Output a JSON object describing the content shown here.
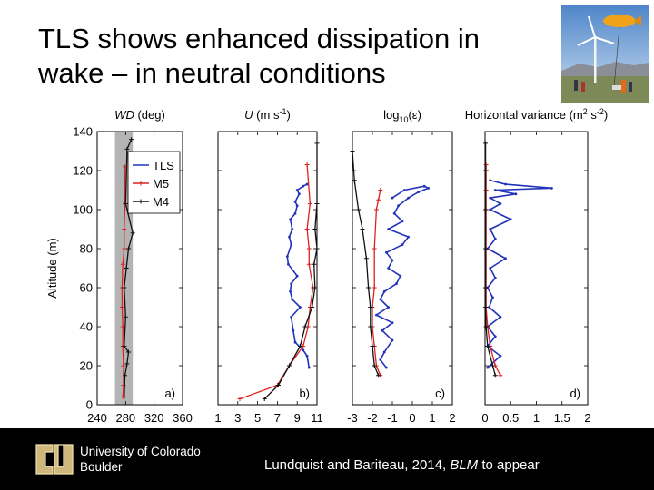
{
  "slide": {
    "title_line1": "TLS shows enhanced dissipation in",
    "title_line2": "wake – in neutral conditions",
    "citation_prefix": "Lundquist and Bariteau, 2014, ",
    "citation_journal": "BLM",
    "citation_suffix": " to appear"
  },
  "branding": {
    "university_line1": "University of Colorado",
    "university_line2": "Boulder",
    "logo_icon": "cu-logo-icon",
    "photo_icon": "wind-turbine-tethered-balloon-photo"
  },
  "colors": {
    "TLS": "#2233bb",
    "M5": "#dd2222",
    "M4": "#111111",
    "shade": "#b4b4b4",
    "footer": "#000000"
  },
  "chart_data": [
    {
      "type": "line",
      "panel": "a)",
      "title_var": "WD",
      "title_rest": " (deg)",
      "ylabel": "Altitude (m)",
      "ylim": [
        0,
        140
      ],
      "yticks": [
        0,
        20,
        40,
        60,
        80,
        100,
        120,
        140
      ],
      "xlim": [
        240,
        360
      ],
      "xticks": [
        "240",
        "280",
        "320",
        "360"
      ],
      "xtick_values": [
        240,
        280,
        320,
        360
      ],
      "shaded_band": [
        265,
        290
      ],
      "legend": [
        "TLS",
        "M5",
        "M4"
      ],
      "series": [
        {
          "name": "M5",
          "x": [
            276,
            277,
            277,
            276,
            276,
            275,
            275,
            276,
            278,
            278,
            279,
            279
          ],
          "y": [
            4,
            10,
            20,
            30,
            40,
            50,
            60,
            72,
            80,
            90,
            103,
            122
          ]
        },
        {
          "name": "M4",
          "x": [
            278,
            279,
            282,
            284,
            278,
            280,
            278,
            281,
            284,
            290,
            280,
            282,
            288
          ],
          "y": [
            4,
            15,
            21,
            27,
            30,
            45,
            60,
            70,
            80,
            88,
            103,
            131,
            136
          ]
        }
      ]
    },
    {
      "type": "line",
      "panel": "b)",
      "title_var": "U",
      "title_rest": " (m s",
      "title_sup": "-1",
      "title_end": ")",
      "ylim": [
        0,
        140
      ],
      "xlim": [
        1,
        11
      ],
      "xticks": [
        "1",
        "3",
        "5",
        "7",
        "9",
        "11"
      ],
      "xtick_values": [
        1,
        3,
        5,
        7,
        9,
        11
      ],
      "series": [
        {
          "name": "TLS",
          "x": [
            10.2,
            10.0,
            9.6,
            8.8,
            8.6,
            8.4,
            9.3,
            8.5,
            8.3,
            8.4,
            9.0,
            8.1,
            8.0,
            8.4,
            8.2,
            8.5,
            8.3,
            8.8,
            9.0,
            8.8,
            9.2,
            9.0,
            9.6,
            10.0
          ],
          "y": [
            19,
            25,
            28,
            32,
            38,
            45,
            50,
            54,
            58,
            62,
            66,
            72,
            76,
            82,
            86,
            90,
            95,
            98,
            102,
            104,
            108,
            110,
            112,
            113
          ]
        },
        {
          "name": "M5",
          "x": [
            3.2,
            7.0,
            8.2,
            9.6,
            10.1,
            10.3,
            10.6,
            10.2,
            10.2,
            10.0,
            10.3,
            10.0
          ],
          "y": [
            3,
            10,
            20,
            30,
            40,
            50,
            60,
            72,
            80,
            90,
            103,
            123
          ]
        },
        {
          "name": "M4",
          "x": [
            5.7,
            7.1,
            8.2,
            9.3,
            9.8,
            10.5,
            10.8,
            10.7,
            11.0,
            10.8,
            11.0,
            11.0
          ],
          "y": [
            3,
            10,
            20,
            30,
            40,
            50,
            60,
            72,
            80,
            90,
            103,
            134
          ]
        }
      ]
    },
    {
      "type": "line",
      "panel": "c)",
      "title_var": "log",
      "title_sub": "10",
      "title_end": "(ε)",
      "ylim": [
        0,
        140
      ],
      "xlim": [
        -3,
        2
      ],
      "xticks": [
        "-3",
        "-2",
        "-1",
        "0",
        "1",
        "2"
      ],
      "xtick_values": [
        -3,
        -2,
        -1,
        0,
        1,
        2
      ],
      "series": [
        {
          "name": "TLS",
          "x": [
            -1.3,
            -1.6,
            -1.4,
            -1.0,
            -1.5,
            -1.0,
            -1.8,
            -1.2,
            -1.6,
            -1.4,
            -0.8,
            -0.6,
            -1.2,
            -1.0,
            -1.3,
            -0.5,
            -0.2,
            -1.2,
            -0.5,
            -0.9,
            -0.7,
            -0.2,
            0.3,
            0.8,
            0.6,
            -0.4,
            -1.0
          ],
          "y": [
            19,
            23,
            27,
            33,
            38,
            42,
            46,
            50,
            54,
            58,
            62,
            66,
            70,
            74,
            78,
            82,
            86,
            90,
            94,
            98,
            102,
            106,
            109,
            111,
            112,
            110,
            106
          ]
        },
        {
          "name": "M5",
          "x": [
            -1.6,
            -1.8,
            -1.9,
            -2.0,
            -2.0,
            -1.9,
            -1.9,
            -1.8,
            -1.7,
            -1.6
          ],
          "y": [
            15,
            20,
            30,
            40,
            50,
            60,
            80,
            100,
            105,
            110
          ]
        },
        {
          "name": "M4",
          "x": [
            -1.7,
            -1.9,
            -2.0,
            -2.1,
            -2.1,
            -2.2,
            -2.3,
            -2.5,
            -2.7,
            -2.9,
            -3.0
          ],
          "y": [
            15,
            20,
            30,
            40,
            50,
            60,
            75,
            90,
            100,
            115,
            130
          ]
        }
      ]
    },
    {
      "type": "line",
      "panel": "d)",
      "title_var": "Horizontal variance (m",
      "title_sup": "2",
      "title_mid": " s",
      "title_sup2": "-2",
      "title_end": ")",
      "ylim": [
        0,
        140
      ],
      "xlim": [
        0,
        2
      ],
      "xticks": [
        "0",
        "0.5",
        "1",
        "1.5",
        "2"
      ],
      "xtick_values": [
        0,
        0.5,
        1,
        1.5,
        2
      ],
      "series": [
        {
          "name": "TLS",
          "x": [
            0.05,
            0.3,
            0.05,
            0.2,
            0.05,
            0.3,
            0.08,
            0.15,
            0.05,
            0.2,
            0.1,
            0.4,
            0.05,
            0.2,
            0.1,
            0.5,
            0.1,
            0.3,
            0.1,
            0.6,
            0.2,
            1.3,
            0.4,
            0.1
          ],
          "y": [
            19,
            25,
            30,
            35,
            40,
            45,
            50,
            55,
            60,
            65,
            70,
            75,
            80,
            85,
            90,
            95,
            100,
            103,
            106,
            108,
            110,
            111,
            113,
            115
          ]
        },
        {
          "name": "M5",
          "x": [
            0.3,
            0.2,
            0.1,
            0.05,
            0.02,
            0.02,
            0.02,
            0.02,
            0.02,
            0.02
          ],
          "y": [
            15,
            20,
            30,
            40,
            50,
            60,
            80,
            100,
            110,
            123
          ]
        },
        {
          "name": "M4",
          "x": [
            0.2,
            0.15,
            0.05,
            0.02,
            0.01,
            0.01,
            0.01,
            0.01,
            0.01,
            0.01
          ],
          "y": [
            15,
            20,
            30,
            40,
            50,
            60,
            80,
            100,
            120,
            134
          ]
        }
      ]
    }
  ]
}
